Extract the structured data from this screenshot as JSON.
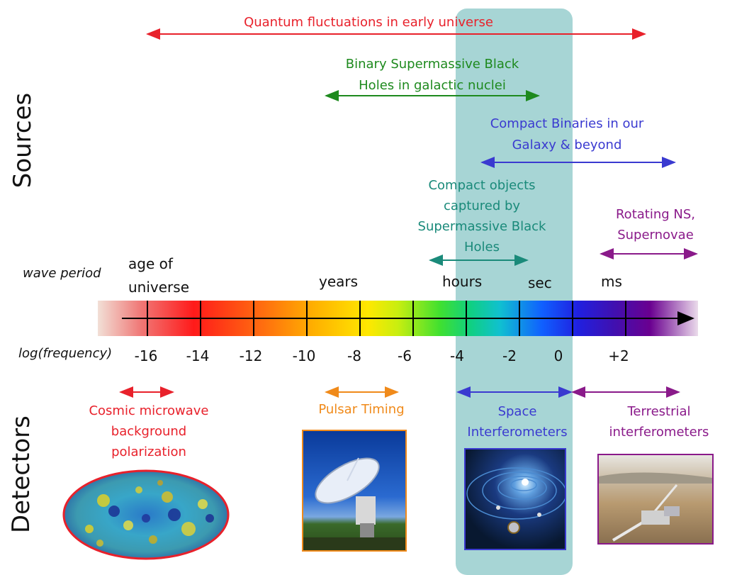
{
  "side_labels": {
    "sources": "Sources",
    "detectors": "Detectors"
  },
  "axis": {
    "wave_period_label": "wave period",
    "log_frequency_label": "log(frequency)",
    "period_labels": [
      "age of",
      "universe",
      "years",
      "hours",
      "sec",
      "ms"
    ],
    "tick_labels": [
      "-16",
      "-14",
      "-12",
      "-10",
      "-8",
      "-6",
      "-4",
      "-2",
      "0",
      "+2"
    ]
  },
  "sources": [
    {
      "id": "quantum",
      "lines": [
        "Quantum fluctuations in early universe"
      ],
      "color": "#e8212b"
    },
    {
      "id": "smbh",
      "lines": [
        "Binary Supermassive Black",
        "Holes in galactic nuclei"
      ],
      "color": "#1e8a1e"
    },
    {
      "id": "compact-binaries",
      "lines": [
        "Compact Binaries in our",
        "Galaxy & beyond"
      ],
      "color": "#3a3ad0"
    },
    {
      "id": "emri",
      "lines": [
        "Compact objects",
        "captured by",
        "Supermassive Black",
        "Holes"
      ],
      "color": "#1a8a7a"
    },
    {
      "id": "ns",
      "lines": [
        "Rotating NS,",
        "Supernovae"
      ],
      "color": "#8a1a8a"
    }
  ],
  "detectors": [
    {
      "id": "cmb",
      "lines": [
        "Cosmic microwave",
        "background",
        "polarization"
      ],
      "color": "#e8212b"
    },
    {
      "id": "pulsar",
      "lines": [
        "Pulsar Timing"
      ],
      "color": "#f08a1a"
    },
    {
      "id": "space",
      "lines": [
        "Space",
        "Interferometers"
      ],
      "color": "#3a3ad0"
    },
    {
      "id": "terrestrial",
      "lines": [
        "Terrestrial",
        "interferometers"
      ],
      "color": "#8a1a8a"
    }
  ],
  "colors": {
    "highlight_band": "#5fb3b3",
    "axis_line": "#000000"
  },
  "icons": [
    "cmb-sky-map-image",
    "radio-telescope-image",
    "spacetime-ripple-image",
    "ligo-facility-image"
  ]
}
